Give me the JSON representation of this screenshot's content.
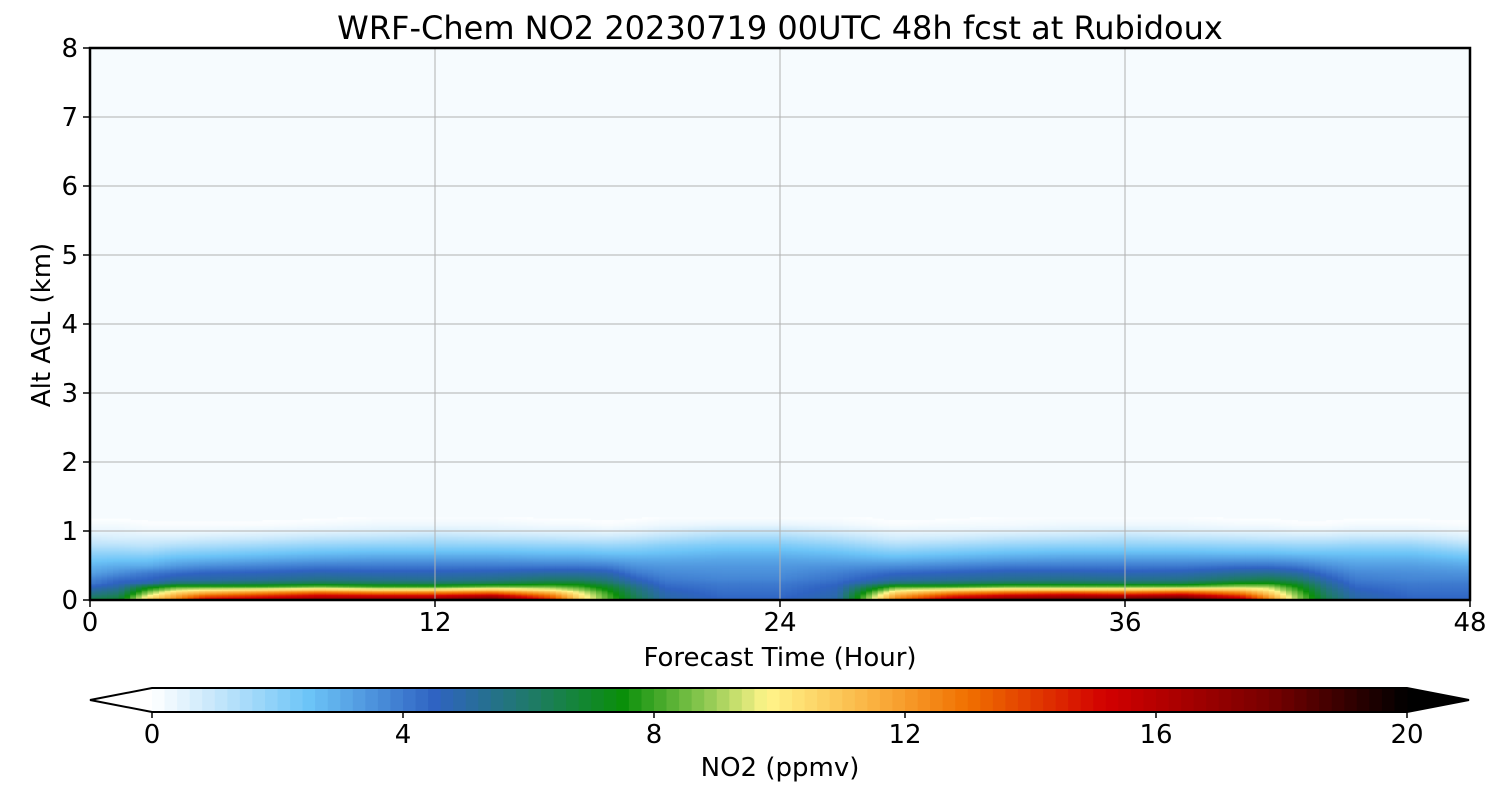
{
  "chart_data": {
    "type": "heatmap",
    "title": "WRF-Chem NO2  20230719 00UTC 48h fcst at Rubidoux",
    "xlabel": "Forecast Time (Hour)",
    "ylabel": "Alt AGL (km)",
    "xlim": [
      0,
      48
    ],
    "ylim": [
      0,
      8
    ],
    "x_ticks": [
      0,
      12,
      24,
      36,
      48
    ],
    "y_ticks": [
      0,
      1,
      2,
      3,
      4,
      5,
      6,
      7,
      8
    ],
    "grid": true,
    "z_time": [
      0,
      1,
      2,
      3,
      4,
      6,
      8,
      10,
      12,
      14,
      16,
      17,
      18,
      19,
      20,
      22,
      24,
      26,
      28,
      30,
      32,
      34,
      36,
      38,
      40,
      41,
      42,
      43,
      44,
      46,
      48
    ],
    "z_alt": [
      0.0,
      0.05,
      0.1,
      0.15,
      0.2,
      0.25,
      0.3,
      0.4,
      0.5,
      0.6,
      0.7,
      0.8,
      0.9,
      1.0,
      1.1,
      1.2
    ],
    "z_values": [
      [
        7,
        6,
        5.5,
        5,
        4.5,
        4,
        3.8,
        3.2,
        2.8,
        2.3,
        1.8,
        1.2,
        0.8,
        0.4,
        0.2,
        0
      ],
      [
        7,
        6.5,
        6,
        5.5,
        5,
        4.6,
        4.3,
        3.6,
        3.0,
        2.4,
        1.8,
        1.2,
        0.7,
        0.4,
        0.2,
        0
      ],
      [
        11,
        10,
        9,
        8,
        7,
        5,
        4.5,
        4,
        3,
        2.4,
        1.7,
        1.1,
        0.7,
        0.3,
        0.1,
        0
      ],
      [
        13,
        12,
        11,
        9.5,
        8,
        6,
        5,
        4.3,
        3.4,
        2.7,
        2.0,
        1.3,
        0.7,
        0.3,
        0.1,
        0
      ],
      [
        16,
        14,
        12,
        10,
        8,
        6,
        5,
        4.5,
        3.6,
        2.8,
        2.1,
        1.4,
        0.8,
        0.3,
        0.1,
        0
      ],
      [
        17,
        15,
        13,
        10.5,
        8,
        6.2,
        5.2,
        4.6,
        3.8,
        3.0,
        2.3,
        1.6,
        0.9,
        0.4,
        0.1,
        0
      ],
      [
        18,
        16,
        14,
        11,
        8.5,
        6.5,
        5.5,
        4.8,
        4.0,
        3.2,
        2.5,
        1.8,
        1.1,
        0.5,
        0.2,
        0
      ],
      [
        18,
        16,
        13.5,
        10.5,
        8,
        6.3,
        5.4,
        4.7,
        4.0,
        3.3,
        2.6,
        1.9,
        1.2,
        0.6,
        0.3,
        0.1
      ],
      [
        18,
        16,
        13.5,
        10.5,
        8,
        6.2,
        5.3,
        4.7,
        4.0,
        3.3,
        2.6,
        1.9,
        1.3,
        0.7,
        0.3,
        0.1
      ],
      [
        19,
        17,
        14,
        11,
        8.5,
        6.5,
        5.5,
        4.8,
        4.0,
        3.3,
        2.6,
        1.9,
        1.2,
        0.6,
        0.3,
        0.1
      ],
      [
        15,
        13.5,
        12,
        10,
        8.5,
        7,
        6,
        5,
        4.0,
        3.2,
        2.5,
        1.8,
        1.1,
        0.5,
        0.2,
        0
      ],
      [
        11,
        10.5,
        10,
        9,
        8,
        7,
        6,
        5,
        4.0,
        3.2,
        2.5,
        1.8,
        1.0,
        0.5,
        0.2,
        0
      ],
      [
        8.5,
        8.2,
        8,
        7.5,
        7,
        6.2,
        5.6,
        4.8,
        3.9,
        3.1,
        2.4,
        1.7,
        1.0,
        0.4,
        0.1,
        0
      ],
      [
        6.5,
        6.3,
        6,
        5.8,
        5.5,
        5,
        4.6,
        4.0,
        3.5,
        3.0,
        2.4,
        1.8,
        1.1,
        0.5,
        0.2,
        0
      ],
      [
        5,
        4.9,
        4.8,
        4.6,
        4.4,
        4.2,
        4,
        3.7,
        3.4,
        3.0,
        2.5,
        2.0,
        1.3,
        0.7,
        0.3,
        0.1
      ],
      [
        4.5,
        4.4,
        4.3,
        4.2,
        4.1,
        4,
        3.8,
        3.6,
        3.4,
        3.1,
        2.7,
        2.2,
        1.6,
        1.0,
        0.4,
        0.1
      ],
      [
        4.5,
        4.4,
        4.3,
        4.2,
        4.1,
        4,
        3.8,
        3.6,
        3.4,
        3.1,
        2.7,
        2.2,
        1.6,
        1.0,
        0.4,
        0.1
      ],
      [
        5,
        4.9,
        4.8,
        4.7,
        4.6,
        4.4,
        4.2,
        3.9,
        3.5,
        3.0,
        2.5,
        1.9,
        1.3,
        0.7,
        0.3,
        0.1
      ],
      [
        13,
        12,
        11,
        9.5,
        8,
        6,
        5,
        4.4,
        3.6,
        2.8,
        2.1,
        1.4,
        0.8,
        0.4,
        0.1,
        0
      ],
      [
        17,
        15,
        13,
        10.5,
        8,
        6.2,
        5.2,
        4.6,
        3.8,
        3.0,
        2.3,
        1.6,
        0.9,
        0.4,
        0.2,
        0
      ],
      [
        18.5,
        16.5,
        14,
        11,
        8.5,
        6.5,
        5.4,
        4.8,
        4.0,
        3.2,
        2.5,
        1.8,
        1.1,
        0.5,
        0.2,
        0.1
      ],
      [
        19,
        17,
        14.5,
        11,
        8.5,
        6.5,
        5.5,
        4.8,
        4.0,
        3.3,
        2.6,
        1.9,
        1.2,
        0.6,
        0.3,
        0.1
      ],
      [
        19,
        17,
        14,
        11,
        8.5,
        6.4,
        5.4,
        4.7,
        4.0,
        3.3,
        2.6,
        1.9,
        1.3,
        0.7,
        0.3,
        0.1
      ],
      [
        19.5,
        17.5,
        14.5,
        11.5,
        8.5,
        6.5,
        5.5,
        4.8,
        4.0,
        3.3,
        2.6,
        1.9,
        1.2,
        0.6,
        0.3,
        0.1
      ],
      [
        17,
        15,
        13,
        11,
        9,
        7.5,
        6.2,
        5.2,
        4.2,
        3.3,
        2.5,
        1.8,
        1.1,
        0.5,
        0.2,
        0
      ],
      [
        13,
        12,
        11,
        10,
        9,
        7.5,
        6.5,
        5.3,
        4.2,
        3.3,
        2.5,
        1.8,
        1.0,
        0.5,
        0.2,
        0
      ],
      [
        9,
        8.8,
        8.5,
        8,
        7.5,
        6.8,
        6,
        5.0,
        4.0,
        3.2,
        2.4,
        1.7,
        1.0,
        0.4,
        0.1,
        0
      ],
      [
        6.5,
        6.3,
        6,
        5.8,
        5.5,
        5.2,
        4.8,
        4.2,
        3.6,
        3.0,
        2.4,
        1.7,
        1.0,
        0.4,
        0.1,
        0
      ],
      [
        5,
        4.9,
        4.8,
        4.6,
        4.4,
        4.2,
        4,
        3.7,
        3.3,
        2.9,
        2.4,
        1.8,
        1.1,
        0.5,
        0.2,
        0
      ],
      [
        4.5,
        4.4,
        4.3,
        4.2,
        4.1,
        4,
        3.8,
        3.6,
        3.3,
        2.9,
        2.4,
        1.8,
        1.1,
        0.5,
        0.2,
        0
      ],
      [
        4.5,
        4.4,
        4.3,
        4.2,
        4.1,
        4,
        3.8,
        3.5,
        3.1,
        2.6,
        2.0,
        1.3,
        0.7,
        0.3,
        0.1,
        0
      ]
    ],
    "colorbar": {
      "label": "NO2  (ppmv)",
      "min": 0,
      "max": 20,
      "ticks": [
        0,
        4,
        8,
        12,
        16,
        20
      ],
      "extend": "both",
      "colors": [
        "#ffffff",
        "#c6e7fb",
        "#6cc4f7",
        "#2f63c2",
        "#1f7a6a",
        "#0a8f0a",
        "#8cc850",
        "#fff58a",
        "#fab140",
        "#f07000",
        "#d20000",
        "#780000",
        "#000000"
      ],
      "color_stops": [
        0,
        1,
        2.5,
        4.5,
        6,
        7.5,
        8.8,
        9.8,
        11.5,
        13,
        15.2,
        17.8,
        20
      ]
    }
  }
}
